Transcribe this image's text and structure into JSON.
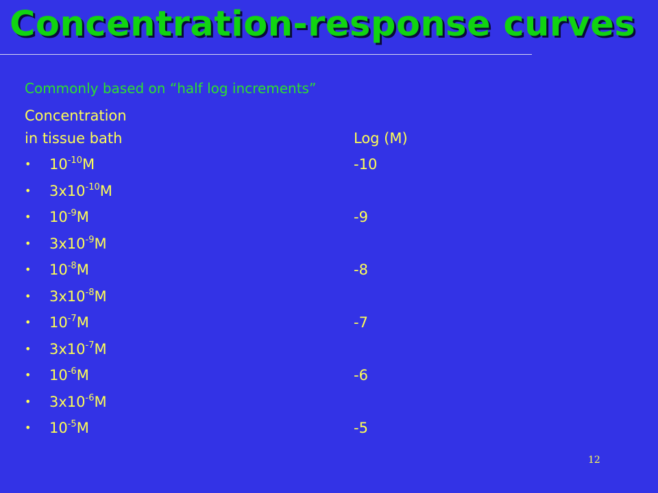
{
  "slide": {
    "title": "Concentration-response curves",
    "subtitle": "Commonly based on “half log increments”",
    "column_left_heading_line1": "Concentration",
    "column_left_heading_line2": "in tissue bath",
    "column_right_heading": "Log (M)",
    "bullet_glyph": "•",
    "page_number": "12",
    "colors": {
      "background": "#3333e6",
      "title": "#11d411",
      "subtitle": "#2ee02e",
      "body_text": "#ffff55"
    }
  },
  "rows": [
    {
      "prefix": "10",
      "exponent": "-10",
      "unit": "M",
      "log": "-10"
    },
    {
      "prefix": "3x10",
      "exponent": "-10",
      "unit": "M",
      "log": ""
    },
    {
      "prefix": "10",
      "exponent": "-9",
      "unit": "M",
      "log": "-9"
    },
    {
      "prefix": "3x10",
      "exponent": "-9",
      "unit": "M",
      "log": ""
    },
    {
      "prefix": "10",
      "exponent": "-8",
      "unit": "M",
      "log": "-8"
    },
    {
      "prefix": "3x10",
      "exponent": "-8",
      "unit": "M",
      "log": ""
    },
    {
      "prefix": "10",
      "exponent": "-7",
      "unit": "M",
      "log": "-7"
    },
    {
      "prefix": "3x10",
      "exponent": "-7",
      "unit": "M",
      "log": ""
    },
    {
      "prefix": "10",
      "exponent": "-6",
      "unit": "M",
      "log": "-6"
    },
    {
      "prefix": "3x10",
      "exponent": "-6",
      "unit": "M",
      "log": ""
    },
    {
      "prefix": "10",
      "exponent": "-5",
      "unit": "M",
      "log": "-5"
    }
  ]
}
